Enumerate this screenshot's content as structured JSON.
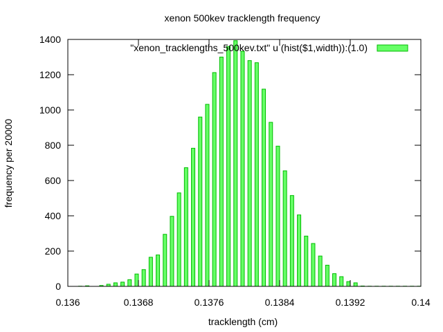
{
  "chart_data": {
    "type": "bar",
    "title": "xenon 500kev tracklength frequency",
    "xlabel": "tracklength (cm)",
    "ylabel": "frequency per 20000",
    "xlim": [
      0.136,
      0.14
    ],
    "ylim": [
      0,
      1400
    ],
    "xticks": [
      "0.136",
      "0.1368",
      "0.1376",
      "0.1384",
      "0.1392",
      "0.14"
    ],
    "yticks": [
      "0",
      "200",
      "400",
      "600",
      "800",
      "1000",
      "1200",
      "1400"
    ],
    "grid": false,
    "legend": {
      "position": "top-right",
      "label": "\"xenon_tracklengths_500kev.txt\" u (hist($1,width)):(1.0)"
    },
    "series": [
      {
        "name": "\"xenon_tracklengths_500kev.txt\" u (hist($1,width)):(1.0)",
        "color": "#66ff66",
        "edge_color": "#00bb00",
        "x": [
          0.13614,
          0.13622,
          0.13638,
          0.13646,
          0.13654,
          0.13662,
          0.1367,
          0.13678,
          0.13686,
          0.13694,
          0.13702,
          0.1371,
          0.13718,
          0.13726,
          0.13734,
          0.13742,
          0.1375,
          0.13758,
          0.13766,
          0.13774,
          0.13782,
          0.1379,
          0.13798,
          0.13806,
          0.13814,
          0.13822,
          0.1383,
          0.13838,
          0.13846,
          0.13854,
          0.13862,
          0.1387,
          0.13878,
          0.13886,
          0.13894,
          0.13902,
          0.1391,
          0.13918,
          0.13926,
          0.13934,
          0.13942,
          0.1395,
          0.13958,
          0.13966,
          0.13974,
          0.13982,
          0.1399,
          0.13998
        ],
        "values": [
          1,
          3,
          5,
          12,
          20,
          24,
          38,
          70,
          95,
          165,
          178,
          295,
          397,
          530,
          673,
          783,
          960,
          1032,
          1212,
          1300,
          1360,
          1393,
          1333,
          1280,
          1268,
          1118,
          930,
          795,
          655,
          515,
          405,
          285,
          243,
          172,
          120,
          72,
          55,
          27,
          20,
          2,
          1,
          1,
          1,
          1,
          1,
          1,
          1,
          1
        ]
      }
    ]
  }
}
